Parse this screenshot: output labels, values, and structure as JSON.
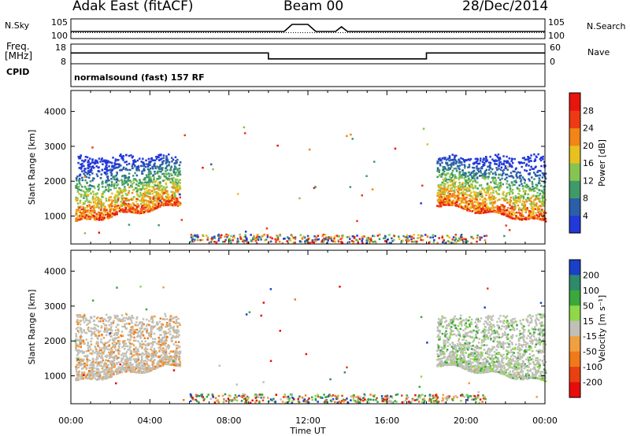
{
  "header": {
    "site": "Adak East (fitACF)",
    "beam": "Beam 00",
    "date": "28/Dec/2014"
  },
  "side_labels": {
    "nsky": "N.Sky",
    "freq_line1": "Freq.",
    "freq_line2": "[MHz]",
    "cpid": "CPID",
    "nsearch": "N.Search",
    "nave": "Nave"
  },
  "cpid_text": "normalsound (fast) 157 RF",
  "colors": {
    "axis": "#000000",
    "ground_scatter": "#c0c0b8"
  },
  "chart_data": [
    {
      "type": "line",
      "panel": "noise",
      "left_ticks": [
        "10^5",
        "10^0"
      ],
      "right_ticks": [
        "10^5",
        "10^0"
      ],
      "series": [
        {
          "name": "N.Sky",
          "x": [
            0,
            2,
            4,
            6,
            8,
            10,
            10.8,
            11.2,
            12,
            12.4,
            13.4,
            13.7,
            14,
            16,
            18,
            20,
            22,
            24
          ],
          "y": [
            1,
            1,
            1,
            1,
            1,
            1,
            1,
            4,
            4,
            1,
            1,
            3,
            1,
            1,
            1,
            1,
            1,
            1
          ]
        },
        {
          "name": "N.Search",
          "x": [
            0,
            24
          ],
          "y": [
            0.5,
            0.5
          ]
        }
      ]
    },
    {
      "type": "line",
      "panel": "frequency",
      "left_ticks": [
        "18",
        "8"
      ],
      "right_ticks": [
        "60",
        "0"
      ],
      "series": [
        {
          "name": "Freq.",
          "x": [
            0,
            10,
            10,
            18,
            18,
            24
          ],
          "y": [
            13.5,
            13.5,
            10.5,
            10.5,
            13.5,
            13.5
          ]
        },
        {
          "name": "Nave",
          "x": [
            0,
            24
          ],
          "y": [
            8,
            8
          ]
        }
      ]
    },
    {
      "type": "heatmap",
      "panel": "power",
      "ylabel": "Slant Range [km]",
      "yticks": [
        "1000",
        "2000",
        "3000",
        "4000"
      ],
      "ylim": [
        200,
        4600
      ],
      "xlim": [
        0,
        24
      ],
      "colorbar_label": "Power [dB]",
      "colorbar_ticks": [
        "4",
        "8",
        "12",
        "16",
        "20",
        "24",
        "28"
      ],
      "colorbar_colors": [
        "#2238d8",
        "#2b5fa8",
        "#3f9a6a",
        "#86c452",
        "#e8c020",
        "#f28518",
        "#ee3a14",
        "#e8140e"
      ],
      "scatter_regions": [
        {
          "t_start": 0.2,
          "t_end": 5.5,
          "r_min": 800,
          "r_max": 3500
        },
        {
          "t_start": 18.5,
          "t_end": 24,
          "r_min": 800,
          "r_max": 3500
        }
      ]
    },
    {
      "type": "heatmap",
      "panel": "velocity",
      "ylabel": "Slant Range [km]",
      "yticks": [
        "1000",
        "2000",
        "3000",
        "4000"
      ],
      "ylim": [
        200,
        4600
      ],
      "xlim": [
        0,
        24
      ],
      "xticks": [
        "00:00",
        "04:00",
        "08:00",
        "12:00",
        "16:00",
        "20:00",
        "00:00"
      ],
      "xlabel": "Time UT",
      "colorbar_label": "Velocity [m s⁻¹]",
      "colorbar_ticks": [
        "200",
        "100",
        "50",
        "15",
        "-15",
        "-50",
        "-100",
        "-200"
      ],
      "colorbar_colors": [
        "#1a40c8",
        "#2e8a6a",
        "#3aa83a",
        "#8ed84a",
        "#c0c0b8",
        "#f0a040",
        "#f07a1a",
        "#e84010",
        "#e80c0c"
      ]
    }
  ]
}
